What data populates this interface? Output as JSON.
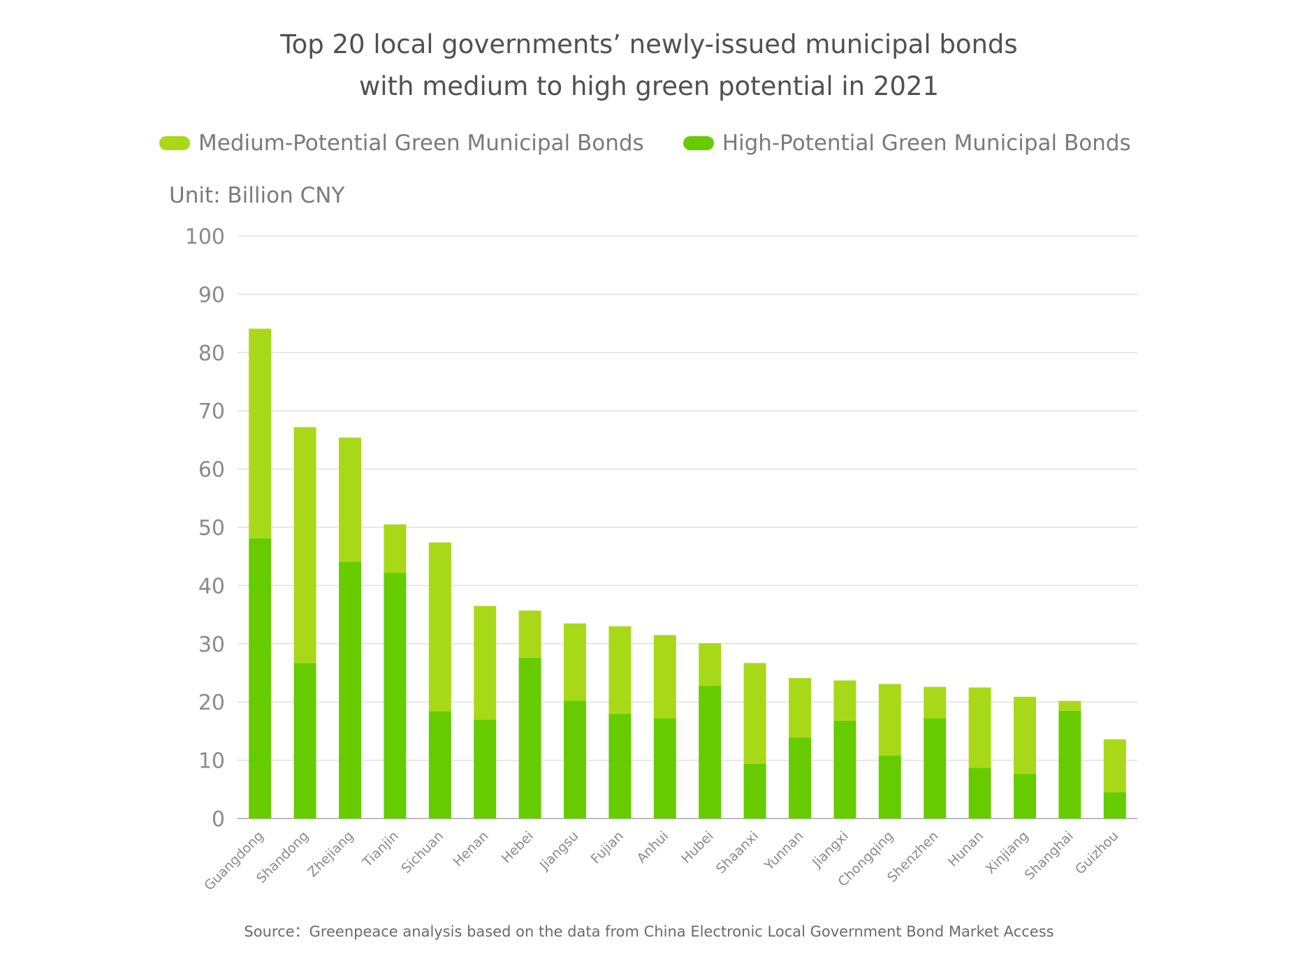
{
  "chart_data": {
    "type": "bar",
    "stacked": true,
    "title_lines": [
      "Top 20 local governments’ newly-issued municipal bonds",
      "with medium to high green potential in 2021"
    ],
    "unit_label": "Unit: Billion CNY",
    "xlabel": "",
    "ylabel": "",
    "ylim": [
      0,
      100
    ],
    "yticks": [
      "0",
      "10",
      "20",
      "30",
      "40",
      "50",
      "60",
      "70",
      "80",
      "90",
      "100"
    ],
    "grid": true,
    "legend_position": "top",
    "categories": [
      "Guangdong",
      "Shandong",
      "Zhejiang",
      "Tianjin",
      "Sichuan",
      "Henan",
      "Hebei",
      "Jiangsu",
      "Fujian",
      "Anhui",
      "Hubei",
      "Shaanxi",
      "Yunnan",
      "Jiangxi",
      "Chongqing",
      "Shenzhen",
      "Hunan",
      "Xinjiang",
      "Shanghai",
      "Guizhou"
    ],
    "series": [
      {
        "name": "High-Potential Green Municipal Bonds",
        "color": "#66cc00",
        "values": [
          48.1,
          26.7,
          44.1,
          42.2,
          18.4,
          17.0,
          27.6,
          20.2,
          18.0,
          17.2,
          22.8,
          9.4,
          13.9,
          16.8,
          10.8,
          17.2,
          8.7,
          7.7,
          18.5,
          4.5
        ]
      },
      {
        "name": "Medium-Potential Green Municipal Bonds",
        "color": "#a8d918",
        "values": [
          36.0,
          40.5,
          21.3,
          8.3,
          29.0,
          19.5,
          8.1,
          13.3,
          15.0,
          14.3,
          7.3,
          17.3,
          10.2,
          6.9,
          12.3,
          5.4,
          13.8,
          13.2,
          1.7,
          9.1
        ]
      }
    ]
  },
  "legend": [
    {
      "label": "Medium-Potential Green Municipal Bonds",
      "color": "#a8d918"
    },
    {
      "label": "High-Potential Green Municipal Bonds",
      "color": "#66cc00"
    }
  ],
  "source": "Source：Greenpeace analysis based on the data from China Electronic Local Government Bond Market Access"
}
